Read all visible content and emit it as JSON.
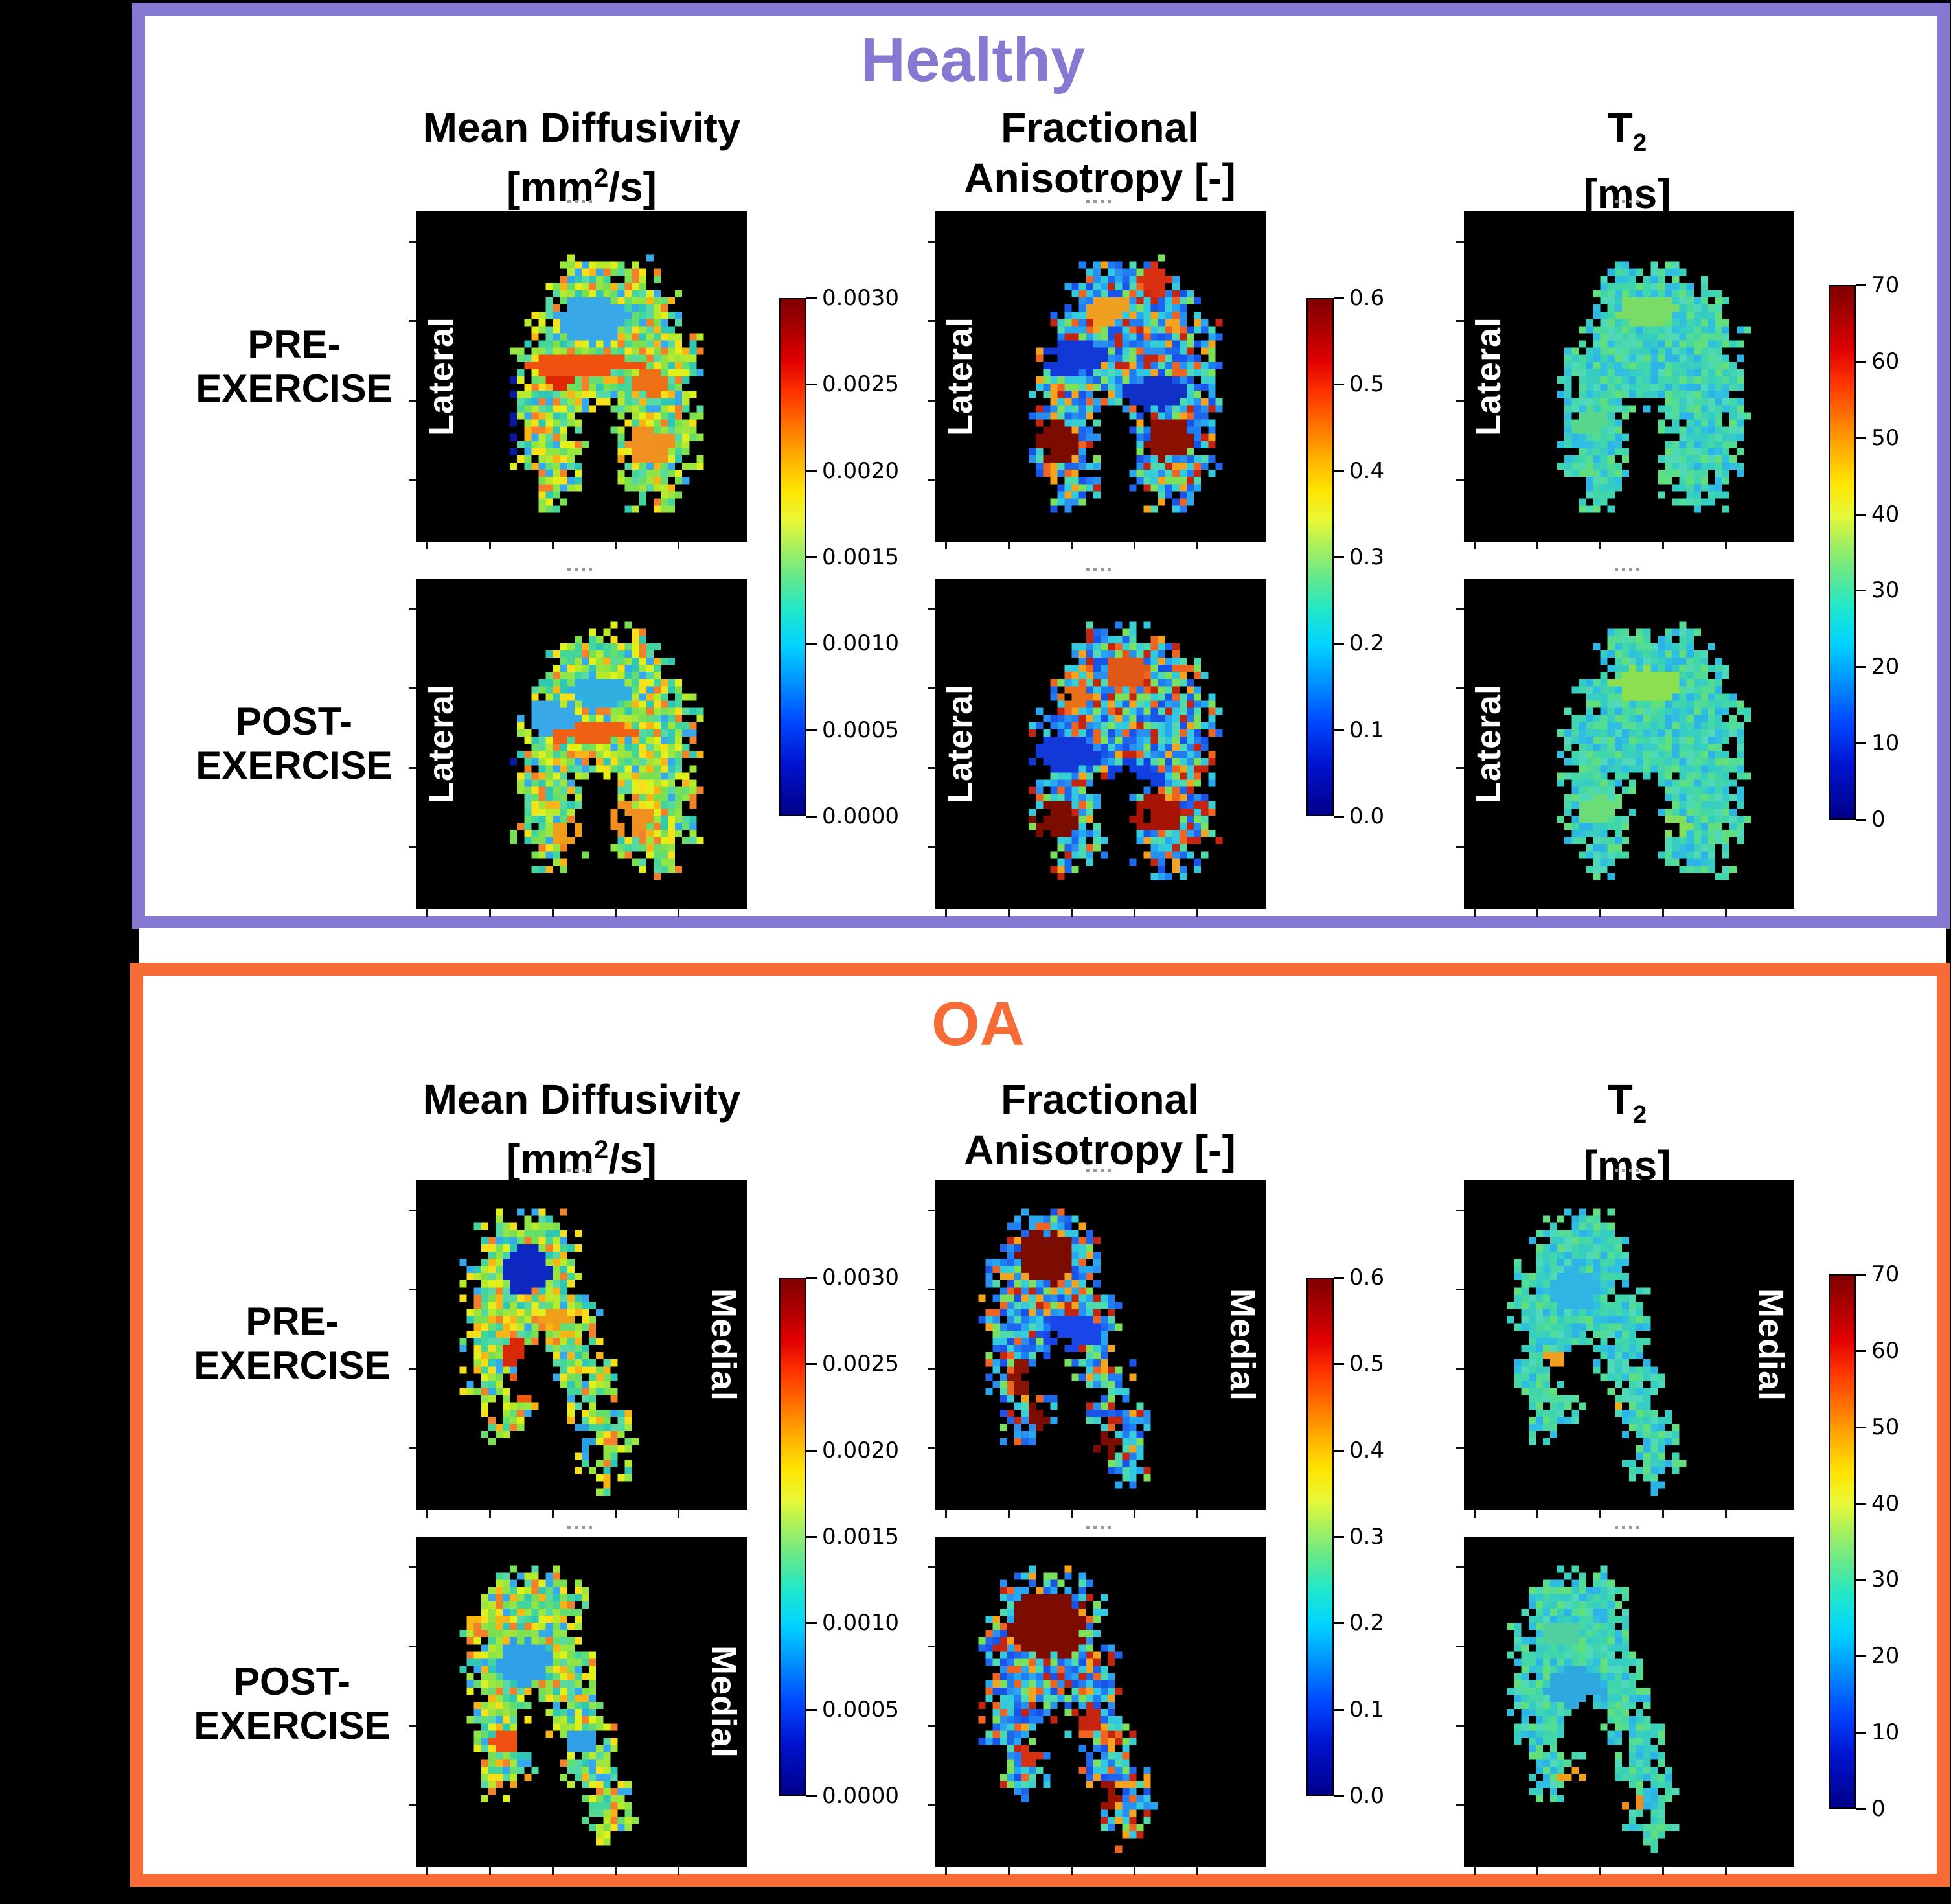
{
  "colors": {
    "healthy_accent": "#8679d2",
    "oa_accent": "#f76b36",
    "panel_bg": "#ffffff",
    "figure_bg": "#000000",
    "side_label_color": "#ffffff",
    "header_color": "#000000"
  },
  "panels": [
    {
      "title": "Healthy",
      "side_label": "Lateral",
      "rows": [
        {
          "l1": "PRE-",
          "l2": "EXERCISE"
        },
        {
          "l1": "POST-",
          "l2": "EXERCISE"
        }
      ]
    },
    {
      "title": "OA",
      "side_label": "Medial",
      "rows": [
        {
          "l1": "PRE-",
          "l2": "EXERCISE"
        },
        {
          "l1": "POST-",
          "l2": "EXERCISE"
        }
      ]
    }
  ],
  "columns": [
    {
      "l1": "Mean Diffusivity",
      "l2a": "[mm",
      "l2sup": "2",
      "l2b": "/s]"
    },
    {
      "l1": "Fractional",
      "l2a": "Anisotropy [-]"
    },
    {
      "l1a": "T",
      "l1sub": "2",
      "l2a": "[ms]"
    }
  ],
  "colorbars": {
    "md": {
      "ticks": [
        "0.0030",
        "0.0025",
        "0.0020",
        "0.0015",
        "0.0010",
        "0.0005",
        "0.0000"
      ]
    },
    "fa": {
      "ticks": [
        "0.6",
        "0.5",
        "0.4",
        "0.3",
        "0.2",
        "0.1",
        "0.0"
      ]
    },
    "t2": {
      "ticks": [
        "70",
        "60",
        "50",
        "40",
        "30",
        "20",
        "10",
        "0"
      ]
    }
  },
  "masks": {
    "healthy": {
      "3": [
        [
          9,
          13
        ]
      ],
      "4": [
        [
          8,
          14
        ]
      ],
      "5": [
        [
          8,
          15
        ]
      ],
      "6": [
        [
          7,
          15
        ]
      ],
      "7": [
        [
          7,
          16
        ]
      ],
      "8": [
        [
          6,
          16
        ]
      ],
      "9": [
        [
          6,
          16
        ]
      ],
      "10": [
        [
          6,
          10
        ],
        [
          11,
          16
        ]
      ],
      "11": [
        [
          6,
          10
        ],
        [
          11,
          16
        ]
      ],
      "12": [
        [
          6,
          9
        ],
        [
          12,
          16
        ]
      ],
      "13": [
        [
          6,
          9
        ],
        [
          12,
          16
        ]
      ],
      "14": [
        [
          6,
          9
        ],
        [
          12,
          16
        ]
      ],
      "15": [
        [
          6,
          9
        ],
        [
          12,
          16
        ]
      ],
      "16": [
        [
          7,
          9
        ],
        [
          12,
          15
        ]
      ],
      "17": [
        [
          7,
          8
        ],
        [
          13,
          15
        ]
      ]
    },
    "oa": {
      "2": [
        [
          5,
          8
        ]
      ],
      "3": [
        [
          4,
          9
        ]
      ],
      "4": [
        [
          4,
          9
        ]
      ],
      "5": [
        [
          3,
          9
        ]
      ],
      "6": [
        [
          3,
          9
        ]
      ],
      "7": [
        [
          3,
          10
        ]
      ],
      "8": [
        [
          3,
          10
        ]
      ],
      "9": [
        [
          3,
          6
        ],
        [
          7,
          10
        ]
      ],
      "10": [
        [
          3,
          6
        ],
        [
          8,
          10
        ]
      ],
      "11": [
        [
          3,
          5
        ],
        [
          8,
          11
        ]
      ],
      "12": [
        [
          3,
          5
        ],
        [
          9,
          11
        ]
      ],
      "13": [
        [
          4,
          6
        ],
        [
          9,
          11
        ]
      ],
      "14": [
        [
          4,
          6
        ],
        [
          9,
          12
        ]
      ],
      "15": [
        [
          4,
          5
        ],
        [
          10,
          12
        ]
      ],
      "16": [
        [
          10,
          12
        ]
      ],
      "17": [
        [
          10,
          12
        ]
      ],
      "18": [
        [
          11,
          11
        ]
      ]
    }
  },
  "palettes": {
    "md": [
      "#2ec8b4",
      "#43d69a",
      "#63de6f",
      "#8fe446",
      "#b8ea2c",
      "#dff01a",
      "#f6e019",
      "#f9b515",
      "#f2812a",
      "#35a8ee",
      "#57d9a5",
      "#7ae052",
      "#9de63e"
    ],
    "fa": [
      "#1a53e8",
      "#1f7df5",
      "#27a7f2",
      "#32c9e0",
      "#4fd9ae",
      "#7be05c",
      "#f4a31c",
      "#ee6420",
      "#c42410",
      "#2a90f0",
      "#1f66ee",
      "#38cfd4"
    ],
    "t2": [
      "#35ccc4",
      "#3fd6ae",
      "#52dc96",
      "#2fbfe0",
      "#45d8a6",
      "#60df7c",
      "#38cfc0",
      "#2db4e6",
      "#4fd9b8"
    ]
  },
  "images": [
    {
      "name": "healthy-md-pre",
      "mask": "healthy",
      "palette": "md",
      "seed": 11,
      "features": [
        [
          0.295,
          0.63,
          0.018,
          0.13,
          "#0818a0"
        ],
        [
          0.53,
          0.33,
          0.1,
          0.07,
          "#38a8e8"
        ],
        [
          0.5,
          0.465,
          0.17,
          0.03,
          "#f05010"
        ],
        [
          0.435,
          0.5,
          0.045,
          0.035,
          "#e02808"
        ],
        [
          0.71,
          0.52,
          0.05,
          0.04,
          "#f07018"
        ],
        [
          0.7,
          0.71,
          0.075,
          0.055,
          "#f09020"
        ],
        [
          0.6,
          0.76,
          0.05,
          0.03,
          "#f0a018"
        ]
      ]
    },
    {
      "name": "healthy-fa-pre",
      "mask": "healthy",
      "palette": "fa",
      "seed": 22,
      "features": [
        [
          0.37,
          0.7,
          0.065,
          0.055,
          "#7c0b00"
        ],
        [
          0.71,
          0.69,
          0.07,
          0.06,
          "#8c1000"
        ],
        [
          0.67,
          0.21,
          0.055,
          0.045,
          "#d83010"
        ],
        [
          0.42,
          0.44,
          0.1,
          0.055,
          "#1238d8"
        ],
        [
          0.66,
          0.55,
          0.1,
          0.05,
          "#1030c8"
        ],
        [
          0.52,
          0.3,
          0.06,
          0.05,
          "#f0a020"
        ]
      ]
    },
    {
      "name": "healthy-t2-pre",
      "mask": "healthy",
      "palette": "t2",
      "seed": 33,
      "features": [
        [
          0.55,
          0.3,
          0.09,
          0.05,
          "#7adc64"
        ],
        [
          0.38,
          0.64,
          0.06,
          0.04,
          "#58d88c"
        ]
      ]
    },
    {
      "name": "healthy-md-post",
      "mask": "healthy",
      "palette": "md",
      "seed": 44,
      "features": [
        [
          0.29,
          0.62,
          0.016,
          0.12,
          "#0818a0"
        ],
        [
          0.4,
          0.42,
          0.09,
          0.05,
          "#38a8e8"
        ],
        [
          0.55,
          0.345,
          0.09,
          0.05,
          "#30b0e0"
        ],
        [
          0.52,
          0.465,
          0.15,
          0.027,
          "#f06014"
        ],
        [
          0.63,
          0.73,
          0.09,
          0.05,
          "#f09020"
        ],
        [
          0.46,
          0.77,
          0.055,
          0.035,
          "#f0a018"
        ]
      ]
    },
    {
      "name": "healthy-fa-post",
      "mask": "healthy",
      "palette": "fa",
      "seed": 55,
      "features": [
        [
          0.36,
          0.73,
          0.075,
          0.06,
          "#7c0b00"
        ],
        [
          0.67,
          0.71,
          0.075,
          0.055,
          "#a81404"
        ],
        [
          0.58,
          0.28,
          0.06,
          0.05,
          "#e05818"
        ],
        [
          0.42,
          0.36,
          0.05,
          0.04,
          "#e87018"
        ],
        [
          0.38,
          0.53,
          0.11,
          0.06,
          "#1238d8"
        ],
        [
          0.6,
          0.6,
          0.085,
          0.05,
          "#1040e0"
        ]
      ]
    },
    {
      "name": "healthy-t2-post",
      "mask": "healthy",
      "palette": "t2",
      "seed": 66,
      "features": [
        [
          0.55,
          0.32,
          0.1,
          0.05,
          "#8ce050"
        ],
        [
          0.4,
          0.7,
          0.07,
          0.04,
          "#6cdc78"
        ],
        [
          0.63,
          0.75,
          0.07,
          0.035,
          "#84e05c"
        ]
      ]
    },
    {
      "name": "oa-md-pre",
      "mask": "oa",
      "palette": "md",
      "seed": 77,
      "features": [
        [
          0.33,
          0.27,
          0.07,
          0.075,
          "#0c28c0"
        ],
        [
          0.3,
          0.52,
          0.045,
          0.04,
          "#d82808"
        ],
        [
          0.325,
          0.63,
          0.05,
          0.045,
          "#f05810"
        ],
        [
          0.42,
          0.42,
          0.05,
          0.028,
          "#f0a018"
        ],
        [
          0.5,
          0.78,
          0.04,
          0.04,
          "#28a0e0"
        ]
      ]
    },
    {
      "name": "oa-fa-pre",
      "mask": "oa",
      "palette": "fa",
      "seed": 88,
      "features": [
        [
          0.335,
          0.235,
          0.085,
          0.075,
          "#7c0b00"
        ],
        [
          0.27,
          0.6,
          0.05,
          0.05,
          "#8c1404"
        ],
        [
          0.31,
          0.72,
          0.04,
          0.04,
          "#7c0b00"
        ],
        [
          0.52,
          0.8,
          0.045,
          0.05,
          "#7c0b00"
        ],
        [
          0.42,
          0.46,
          0.09,
          0.05,
          "#1846e8"
        ]
      ]
    },
    {
      "name": "oa-t2-pre",
      "mask": "oa",
      "palette": "t2",
      "seed": 99,
      "features": [
        [
          0.3,
          0.54,
          0.05,
          0.028,
          "#f0a020"
        ],
        [
          0.44,
          0.68,
          0.045,
          0.028,
          "#f0b018"
        ],
        [
          0.33,
          0.33,
          0.08,
          0.06,
          "#30b4e4"
        ]
      ]
    },
    {
      "name": "oa-md-post",
      "mask": "oa",
      "palette": "md",
      "seed": 111,
      "features": [
        [
          0.33,
          0.38,
          0.08,
          0.07,
          "#2f9fe8"
        ],
        [
          0.27,
          0.62,
          0.055,
          0.03,
          "#f05010"
        ],
        [
          0.5,
          0.62,
          0.045,
          0.04,
          "#2f9fe8"
        ],
        [
          0.34,
          0.76,
          0.055,
          0.035,
          "#f0a018"
        ],
        [
          0.52,
          0.84,
          0.04,
          0.03,
          "#58d88c"
        ]
      ]
    },
    {
      "name": "oa-fa-post",
      "mask": "oa",
      "palette": "fa",
      "seed": 122,
      "features": [
        [
          0.345,
          0.27,
          0.115,
          0.1,
          "#7c0b00"
        ],
        [
          0.46,
          0.55,
          0.045,
          0.04,
          "#c42410"
        ],
        [
          0.3,
          0.66,
          0.04,
          0.035,
          "#d83010"
        ],
        [
          0.52,
          0.78,
          0.04,
          0.04,
          "#9c1200"
        ]
      ]
    },
    {
      "name": "oa-t2-post",
      "mask": "oa",
      "palette": "t2",
      "seed": 133,
      "features": [
        [
          0.34,
          0.46,
          0.085,
          0.06,
          "#2fa8e0"
        ],
        [
          0.35,
          0.72,
          0.07,
          0.028,
          "#f0a018"
        ],
        [
          0.5,
          0.8,
          0.05,
          0.028,
          "#f08c1c"
        ],
        [
          0.3,
          0.3,
          0.06,
          0.04,
          "#50d0a0"
        ]
      ]
    }
  ],
  "chart_data": {
    "type": "heatmap",
    "title": "",
    "colormap": "jet",
    "groups": [
      {
        "title": "Healthy",
        "border_color": "#8679d2",
        "compartment": "Lateral",
        "conditions": [
          "PRE-EXERCISE",
          "POST-EXERCISE"
        ],
        "measures": [
          {
            "name": "Mean Diffusivity",
            "unit": "mm^2/s",
            "colorbar_range": [
              0,
              0.003
            ],
            "colorbar_ticks": [
              0.003,
              0.0025,
              0.002,
              0.0015,
              0.001,
              0.0005,
              0.0
            ]
          },
          {
            "name": "Fractional Anisotropy",
            "unit": "-",
            "colorbar_range": [
              0,
              0.6
            ],
            "colorbar_ticks": [
              0.6,
              0.5,
              0.4,
              0.3,
              0.2,
              0.1,
              0.0
            ]
          },
          {
            "name": "T2",
            "unit": "ms",
            "colorbar_range": [
              0,
              70
            ],
            "colorbar_ticks": [
              70,
              60,
              50,
              40,
              30,
              20,
              10,
              0
            ]
          }
        ]
      },
      {
        "title": "OA",
        "border_color": "#f76b36",
        "compartment": "Medial",
        "conditions": [
          "PRE-EXERCISE",
          "POST-EXERCISE"
        ],
        "measures": [
          {
            "name": "Mean Diffusivity",
            "unit": "mm^2/s",
            "colorbar_range": [
              0,
              0.003
            ],
            "colorbar_ticks": [
              0.003,
              0.0025,
              0.002,
              0.0015,
              0.001,
              0.0005,
              0.0
            ]
          },
          {
            "name": "Fractional Anisotropy",
            "unit": "-",
            "colorbar_range": [
              0,
              0.6
            ],
            "colorbar_ticks": [
              0.6,
              0.5,
              0.4,
              0.3,
              0.2,
              0.1,
              0.0
            ]
          },
          {
            "name": "T2",
            "unit": "ms",
            "colorbar_range": [
              0,
              70
            ],
            "colorbar_ticks": [
              70,
              60,
              50,
              40,
              30,
              20,
              10,
              0
            ]
          }
        ]
      }
    ]
  }
}
